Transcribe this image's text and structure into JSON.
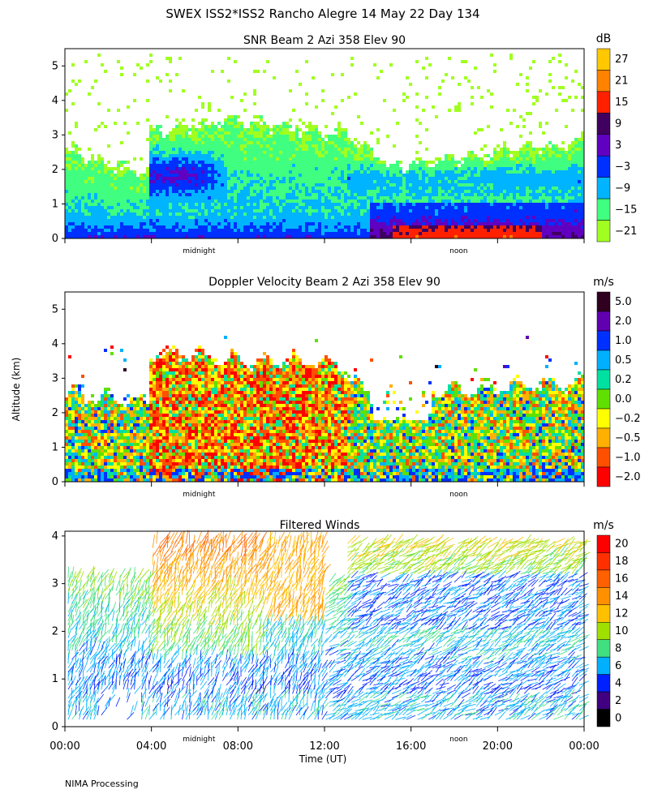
{
  "title": "SWEX ISS2*ISS2 Rancho Alegre  14 May 22 Day 134",
  "footer": "NIMA Processing",
  "y_axis_label": "Altitude (km)",
  "x_axis_label": "Time (UT)",
  "time_ticks": [
    "00:00",
    "04:00",
    "08:00",
    "12:00",
    "16:00",
    "20:00",
    "00:00"
  ],
  "midnight_label": "midnight",
  "noon_label": "noon",
  "chart_data": [
    {
      "type": "heatmap",
      "title": "SNR Beam 2 Azi 358 Elev 90",
      "colorbar_unit": "dB",
      "colorbar_labels": [
        "27",
        "21",
        "15",
        "9",
        "3",
        "−3",
        "−9",
        "−15",
        "−21"
      ],
      "colorbar_colors": [
        "#ffc800",
        "#ff8200",
        "#ff2000",
        "#400060",
        "#6000c0",
        "#0030ff",
        "#00b4ff",
        "#40ff80",
        "#a0ff20"
      ],
      "x_range_hours": [
        0,
        24
      ],
      "ylim": [
        0,
        5.5
      ],
      "yticks": [
        0,
        1,
        2,
        3,
        4,
        5
      ]
    },
    {
      "type": "heatmap",
      "title": "Doppler Velocity Beam 2 Azi 358 Elev 90",
      "colorbar_unit": "m/s",
      "colorbar_labels": [
        "5.0",
        "2.0",
        "1.0",
        "0.5",
        "0.2",
        "0.0",
        "−0.2",
        "−0.5",
        "−1.0",
        "−2.0"
      ],
      "colorbar_colors": [
        "#300020",
        "#6000b0",
        "#0030ff",
        "#00b0ff",
        "#00e0a0",
        "#60e000",
        "#ffff00",
        "#ffb000",
        "#ff5000",
        "#ff0000"
      ],
      "x_range_hours": [
        0,
        24
      ],
      "ylim": [
        0,
        5.5
      ],
      "yticks": [
        0,
        1,
        2,
        3,
        4,
        5
      ]
    },
    {
      "type": "scatter",
      "title": "Filtered Winds",
      "colorbar_unit": "m/s",
      "colorbar_labels": [
        "20",
        "18",
        "16",
        "14",
        "12",
        "10",
        "8",
        "6",
        "4",
        "2",
        "0"
      ],
      "colorbar_colors": [
        "#ff0000",
        "#ff3000",
        "#ff6000",
        "#ff9000",
        "#ffc000",
        "#a0e000",
        "#40e080",
        "#00b0ff",
        "#0020ff",
        "#400080",
        "#000000"
      ],
      "x_range_hours": [
        0,
        24
      ],
      "ylim": [
        0,
        4.1
      ],
      "yticks": [
        0,
        1,
        2,
        3,
        4
      ]
    }
  ]
}
